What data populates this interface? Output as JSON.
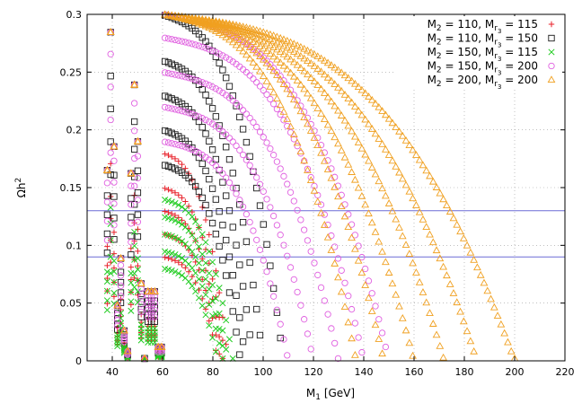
{
  "chart_data": {
    "type": "scatter",
    "title": "",
    "xlabel": "M_1  [GeV]",
    "ylabel": "Ωh^2",
    "xlim": [
      30,
      220
    ],
    "ylim": [
      0,
      0.3
    ],
    "x_ticks": [
      40,
      60,
      80,
      100,
      120,
      140,
      160,
      180,
      200,
      220
    ],
    "y_ticks": [
      0,
      0.05,
      0.1,
      0.15,
      0.2,
      0.25,
      0.3
    ],
    "x_tick_labels": [
      "40",
      "60",
      "80",
      "100",
      "120",
      "140",
      "160",
      "180",
      "200",
      "220"
    ],
    "y_tick_labels": [
      "0",
      "0.05",
      "0.1",
      "0.15",
      "0.2",
      "0.25",
      "0.3"
    ],
    "grid": true,
    "legend_position": "top-right",
    "reference_lines": [
      {
        "y": 0.13,
        "color": "#6b6bd6"
      },
      {
        "y": 0.09,
        "color": "#6b6bd6"
      }
    ],
    "series": [
      {
        "name": "M2 = 110, Mr3 = 115",
        "legend": {
          "a": "M",
          "b": "2",
          "c": " = 110, M",
          "d": "r",
          "e": "3",
          "f": " = 115"
        },
        "marker": "plus",
        "color": "#e8202a",
        "x_range": [
          38,
          86
        ],
        "curves": [
          {
            "peak": 0.18,
            "x_end": 86
          },
          {
            "peak": 0.15,
            "x_end": 85
          },
          {
            "peak": 0.13,
            "x_end": 84
          },
          {
            "peak": 0.11,
            "x_end": 83
          },
          {
            "peak": 0.09,
            "x_end": 82
          }
        ]
      },
      {
        "name": "M2 = 110, Mr3 = 150",
        "legend": {
          "a": "M",
          "b": "2",
          "c": " = 110, M",
          "d": "r",
          "e": "3",
          "f": " = 150"
        },
        "marker": "square",
        "color": "#1a1a1a",
        "x_range": [
          38,
          108
        ],
        "curves": [
          {
            "peak": 0.3,
            "x_end": 108
          },
          {
            "peak": 0.26,
            "x_end": 100
          },
          {
            "peak": 0.23,
            "x_end": 96
          },
          {
            "peak": 0.2,
            "x_end": 93
          },
          {
            "peak": 0.17,
            "x_end": 91
          }
        ]
      },
      {
        "name": "M2 = 150, Mr3 = 115",
        "legend": {
          "a": "M",
          "b": "2",
          "c": " = 150, M",
          "d": "r",
          "e": "3",
          "f": " = 115"
        },
        "marker": "cross",
        "color": "#22cc22",
        "x_range": [
          38,
          88
        ],
        "curves": [
          {
            "peak": 0.14,
            "x_end": 88
          },
          {
            "peak": 0.125,
            "x_end": 86
          },
          {
            "peak": 0.11,
            "x_end": 85
          },
          {
            "peak": 0.095,
            "x_end": 84
          },
          {
            "peak": 0.08,
            "x_end": 82
          }
        ]
      },
      {
        "name": "M2 = 150, Mr3 = 200",
        "legend": {
          "a": "M",
          "b": "2",
          "c": " = 150, M",
          "d": "r",
          "e": "3",
          "f": " = 200"
        },
        "marker": "circle",
        "color": "#e060e0",
        "x_range": [
          38,
          150
        ],
        "curves": [
          {
            "peak": 0.3,
            "x_end": 150
          },
          {
            "peak": 0.28,
            "x_end": 140
          },
          {
            "peak": 0.25,
            "x_end": 130
          },
          {
            "peak": 0.22,
            "x_end": 120
          },
          {
            "peak": 0.19,
            "x_end": 110
          }
        ]
      },
      {
        "name": "M2 = 200, Mr3 = 200",
        "legend": {
          "a": "M",
          "b": "2",
          "c": " = 200, M",
          "d": "r",
          "e": "3",
          "f": " = 200"
        },
        "marker": "triangle",
        "color": "#f0a020",
        "x_range": [
          38,
          200
        ],
        "curves": [
          {
            "peak": 0.3,
            "x_end": 200
          },
          {
            "peak": 0.3,
            "x_end": 185
          },
          {
            "peak": 0.3,
            "x_end": 172
          },
          {
            "peak": 0.3,
            "x_end": 160
          },
          {
            "peak": 0.3,
            "x_end": 148
          },
          {
            "peak": 0.3,
            "x_end": 137
          }
        ]
      }
    ]
  }
}
